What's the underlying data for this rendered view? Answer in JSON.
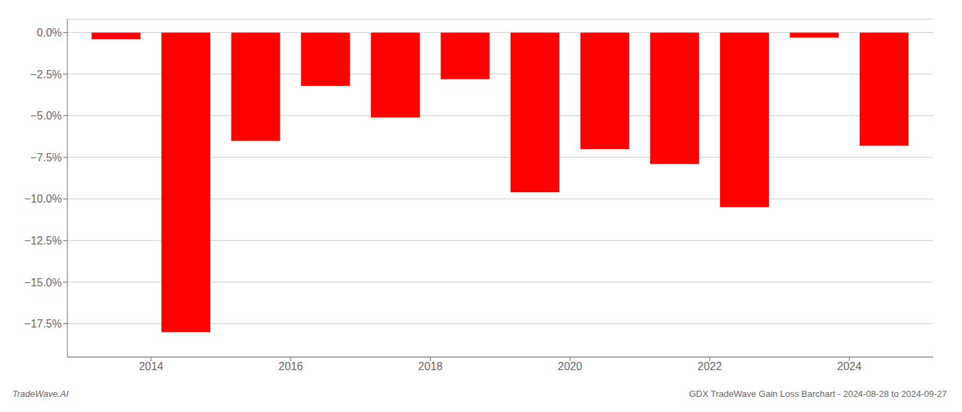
{
  "chart_data": {
    "type": "bar",
    "x": [
      2013.5,
      2014.5,
      2015.5,
      2016.5,
      2017.5,
      2018.5,
      2019.5,
      2020.5,
      2021.5,
      2022.5,
      2023.5,
      2024.5
    ],
    "values": [
      -0.4,
      -18.0,
      -6.5,
      -3.2,
      -5.1,
      -2.8,
      -9.6,
      -7.0,
      -7.9,
      -10.5,
      -0.3,
      -6.8
    ],
    "color": "#ff0000",
    "xlim": [
      2012.8,
      2025.2
    ],
    "xticks": [
      2014,
      2016,
      2018,
      2020,
      2022,
      2024
    ],
    "ylim": [
      -19.5,
      0.8
    ],
    "yticks": [
      {
        "value": 0.0,
        "label": "0.0%"
      },
      {
        "value": -2.5,
        "label": "−2.5%"
      },
      {
        "value": -5.0,
        "label": "−5.0%"
      },
      {
        "value": -7.5,
        "label": "−7.5%"
      },
      {
        "value": -10.0,
        "label": "−10.0%"
      },
      {
        "value": -12.5,
        "label": "−12.5%"
      },
      {
        "value": -15.0,
        "label": "−15.0%"
      },
      {
        "value": -17.5,
        "label": "−17.5%"
      }
    ],
    "grid": true,
    "annotations": [
      "TradeWave.AI",
      "GDX TradeWave Gain Loss Barchart - 2024-08-28 to 2024-09-27"
    ]
  }
}
